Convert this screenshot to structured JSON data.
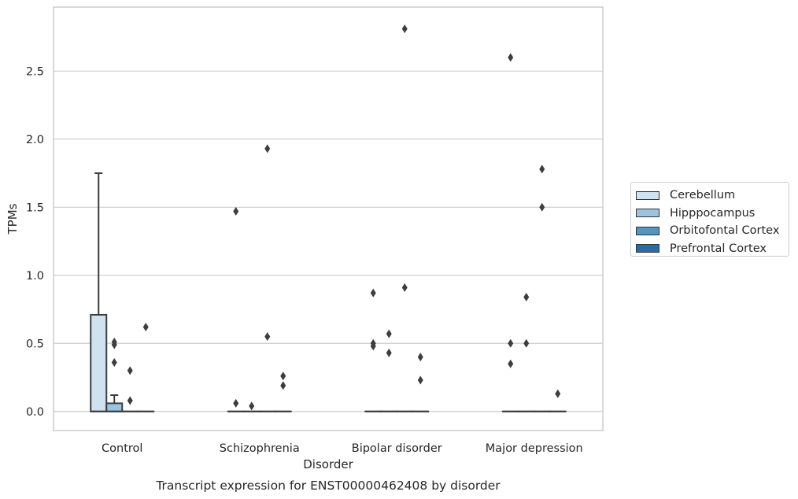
{
  "chart_data": {
    "type": "box",
    "title": "",
    "caption": "Transcript expression for ENST00000462408 by disorder",
    "xlabel": "Disorder",
    "ylabel": "TPMs",
    "ylim": [
      -0.14,
      2.97
    ],
    "yticks": [
      "0.0",
      "0.5",
      "1.0",
      "1.5",
      "2.0",
      "2.5"
    ],
    "grid": "horizontal",
    "legend_position": "right",
    "categories": [
      "Control",
      "Schizophrenia",
      "Bipolar disorder",
      "Major depression"
    ],
    "series": [
      {
        "name": "Cerebellum",
        "color": "#d0e1f0",
        "boxes": [
          {
            "q1": 0,
            "median": 0,
            "q3": 0.71,
            "whisker_low": 0,
            "whisker_high": 1.75,
            "outliers": []
          },
          {
            "q1": 0,
            "median": 0,
            "q3": 0,
            "whisker_low": 0,
            "whisker_high": 0,
            "outliers": [
              0.06,
              1.47
            ]
          },
          {
            "q1": 0,
            "median": 0,
            "q3": 0,
            "whisker_low": 0,
            "whisker_high": 0,
            "outliers": [
              0.48,
              0.5,
              0.87
            ]
          },
          {
            "q1": 0,
            "median": 0,
            "q3": 0,
            "whisker_low": 0,
            "whisker_high": 0,
            "outliers": [
              0.35,
              0.5,
              2.6
            ]
          }
        ]
      },
      {
        "name": "Hipppocampus",
        "color": "#9cc4e0",
        "boxes": [
          {
            "q1": 0,
            "median": 0,
            "q3": 0.06,
            "whisker_low": 0,
            "whisker_high": 0.12,
            "outliers": [
              0.36,
              0.49,
              0.51
            ]
          },
          {
            "q1": 0,
            "median": 0,
            "q3": 0,
            "whisker_low": 0,
            "whisker_high": 0,
            "outliers": [
              0.04
            ]
          },
          {
            "q1": 0,
            "median": 0,
            "q3": 0,
            "whisker_low": 0,
            "whisker_high": 0,
            "outliers": [
              0.43,
              0.57
            ]
          },
          {
            "q1": 0,
            "median": 0,
            "q3": 0,
            "whisker_low": 0,
            "whisker_high": 0,
            "outliers": [
              0.5,
              0.84
            ]
          }
        ]
      },
      {
        "name": "Orbitofontal Cortex",
        "color": "#5495c2",
        "boxes": [
          {
            "q1": 0,
            "median": 0,
            "q3": 0,
            "whisker_low": 0,
            "whisker_high": 0,
            "outliers": [
              0.08,
              0.3
            ]
          },
          {
            "q1": 0,
            "median": 0,
            "q3": 0,
            "whisker_low": 0,
            "whisker_high": 0,
            "outliers": [
              0.55,
              1.93
            ]
          },
          {
            "q1": 0,
            "median": 0,
            "q3": 0,
            "whisker_low": 0,
            "whisker_high": 0,
            "outliers": [
              0.91,
              2.81
            ]
          },
          {
            "q1": 0,
            "median": 0,
            "q3": 0,
            "whisker_low": 0,
            "whisker_high": 0,
            "outliers": [
              1.5,
              1.78
            ]
          }
        ]
      },
      {
        "name": "Prefrontal Cortex",
        "color": "#2a6aa8",
        "boxes": [
          {
            "q1": 0,
            "median": 0,
            "q3": 0,
            "whisker_low": 0,
            "whisker_high": 0,
            "outliers": [
              0.62
            ]
          },
          {
            "q1": 0,
            "median": 0,
            "q3": 0,
            "whisker_low": 0,
            "whisker_high": 0,
            "outliers": [
              0.19,
              0.26
            ]
          },
          {
            "q1": 0,
            "median": 0,
            "q3": 0,
            "whisker_low": 0,
            "whisker_high": 0,
            "outliers": [
              0.23,
              0.4
            ]
          },
          {
            "q1": 0,
            "median": 0,
            "q3": 0,
            "whisker_low": 0,
            "whisker_high": 0,
            "outliers": [
              0.13
            ]
          }
        ]
      }
    ]
  }
}
